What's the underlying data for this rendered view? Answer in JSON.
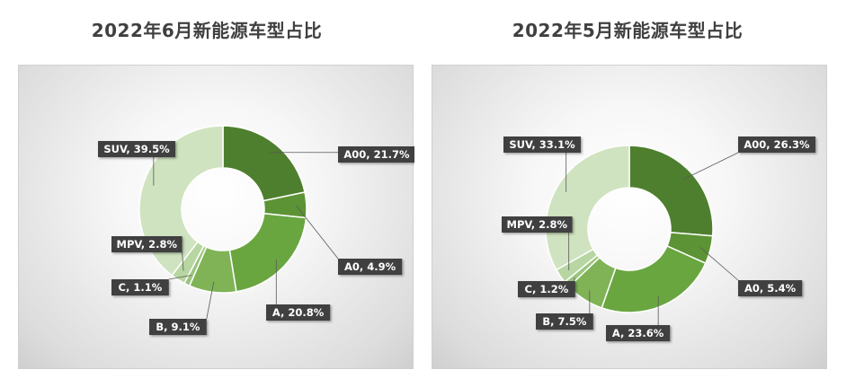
{
  "colors": {
    "A00": "#4e7f2e",
    "A0": "#5c9335",
    "A": "#6aa640",
    "B": "#7fb356",
    "C": "#9ac57d",
    "MPV": "#b7d6a2",
    "SUV": "#cfe3c0",
    "label_bg": "#404040",
    "label_text": "#ffffff"
  },
  "chart_data": [
    {
      "type": "pie",
      "donut": true,
      "title": "2022年6月新能源车型占比",
      "categories": [
        "A00",
        "A0",
        "A",
        "B",
        "C",
        "MPV",
        "SUV"
      ],
      "values": [
        21.7,
        4.9,
        20.8,
        9.1,
        1.1,
        2.8,
        39.5
      ],
      "labels": [
        "A00, 21.7%",
        "A0, 4.9%",
        "A, 20.8%",
        "B, 9.1%",
        "C, 1.1%",
        "MPV, 2.8%",
        "SUV, 39.5%"
      ]
    },
    {
      "type": "pie",
      "donut": true,
      "title": "2022年5月新能源车型占比",
      "categories": [
        "A00",
        "A0",
        "A",
        "B",
        "C",
        "MPV",
        "SUV"
      ],
      "values": [
        26.3,
        5.4,
        23.6,
        7.5,
        1.2,
        2.8,
        33.1
      ],
      "labels": [
        "A00, 26.3%",
        "A0, 5.4%",
        "A, 23.6%",
        "B, 7.5%",
        "C, 1.2%",
        "MPV, 2.8%",
        "SUV, 33.1%"
      ]
    }
  ]
}
